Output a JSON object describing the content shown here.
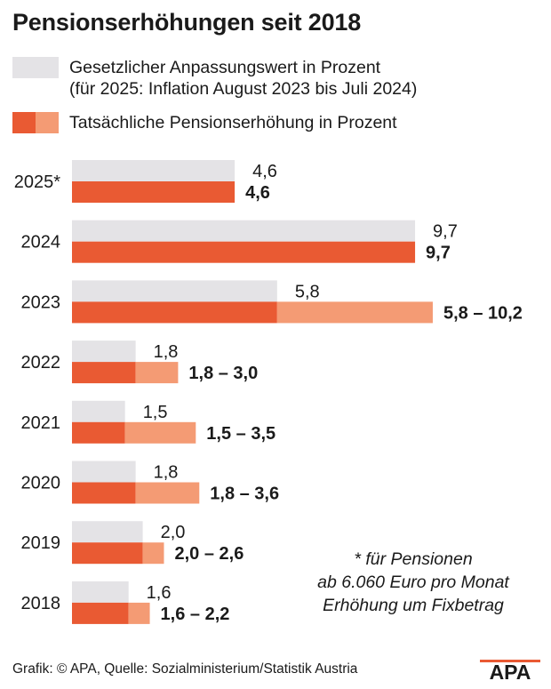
{
  "title": "Pensionserhöhungen seit 2018",
  "legend": {
    "statutory_line1": "Gesetzlicher Anpassungswert in Prozent",
    "statutory_line2": "(für 2025: Inflation August 2023 bis Juli 2024)",
    "actual": "Tatsächliche Pensionserhöhung in Prozent"
  },
  "colors": {
    "statutory": "#e4e3e6",
    "actual_min": "#e95a33",
    "actual_range": "#f49b74"
  },
  "chart_data": {
    "type": "bar",
    "orientation": "horizontal",
    "categories": [
      "2025*",
      "2024",
      "2023",
      "2022",
      "2021",
      "2020",
      "2019",
      "2018"
    ],
    "series": [
      {
        "name": "Gesetzlicher Anpassungswert in Prozent",
        "values": [
          4.6,
          9.7,
          5.8,
          1.8,
          1.5,
          1.8,
          2.0,
          1.6
        ],
        "labels": [
          "4,6",
          "9,7",
          "5,8",
          "1,8",
          "1,5",
          "1,8",
          "2,0",
          "1,6"
        ]
      },
      {
        "name": "Tatsächliche Pensionserhöhung in Prozent",
        "min": [
          4.6,
          9.7,
          5.8,
          1.8,
          1.5,
          1.8,
          2.0,
          1.6
        ],
        "max": [
          4.6,
          9.7,
          10.2,
          3.0,
          3.5,
          3.6,
          2.6,
          2.2
        ],
        "labels": [
          "4,6",
          "9,7",
          "5,8 – 10,2",
          "1,8 – 3,0",
          "1,5 – 3,5",
          "1,8 – 3,6",
          "2,0 – 2,6",
          "1,6 – 2,2"
        ]
      }
    ]
  },
  "note": {
    "line1": "* für Pensionen",
    "line2": "ab 6.060 Euro pro Monat",
    "line3": "Erhöhung um Fixbetrag"
  },
  "footer": "Grafik: © APA, Quelle: Sozialministerium/Statistik Austria",
  "logo": "APA"
}
